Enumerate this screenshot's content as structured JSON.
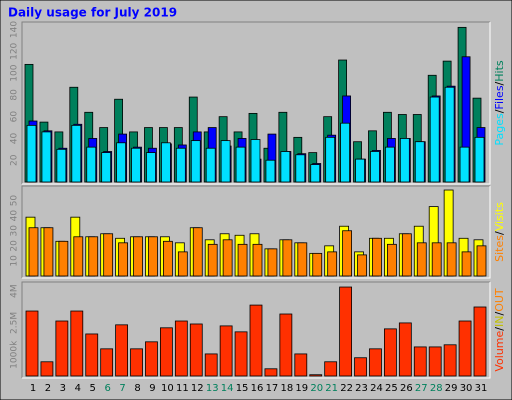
{
  "chart_data": {
    "type": "bar",
    "title": "Daily usage for July 2019",
    "categories": [
      "1",
      "2",
      "3",
      "4",
      "5",
      "6",
      "7",
      "8",
      "9",
      "10",
      "11",
      "12",
      "13",
      "14",
      "15",
      "16",
      "17",
      "18",
      "19",
      "20",
      "21",
      "22",
      "23",
      "24",
      "25",
      "26",
      "27",
      "28",
      "29",
      "30",
      "31"
    ],
    "weekend": [
      false,
      false,
      false,
      false,
      false,
      true,
      true,
      false,
      false,
      false,
      false,
      false,
      true,
      true,
      false,
      false,
      false,
      false,
      false,
      true,
      true,
      false,
      false,
      false,
      false,
      false,
      true,
      true,
      false,
      false,
      false
    ],
    "weekday_color": "#000000",
    "weekend_color": "#00805c",
    "legend_separator": "/",
    "panels": [
      {
        "ylim": [
          0,
          146
        ],
        "yticks": [
          20,
          40,
          60,
          80,
          100,
          120,
          140
        ],
        "series": [
          {
            "name": "Hits",
            "color": "#00805c",
            "values": [
              108,
              55,
              46,
              87,
              64,
              50,
              76,
              46,
              50,
              50,
              50,
              78,
              46,
              60,
              46,
              63,
              31,
              64,
              41,
              27,
              60,
              112,
              37,
              47,
              64,
              62,
              62,
              98,
              111,
              142,
              77
            ]
          },
          {
            "name": "Files",
            "color": "#0000ff",
            "values": [
              56,
              47,
              31,
              53,
              40,
              28,
              44,
              32,
              31,
              35,
              34,
              46,
              50,
              33,
              40,
              21,
              44,
              28,
              26,
              17,
              43,
              79,
              21,
              29,
              40,
              40,
              37,
              79,
              88,
              115,
              50
            ]
          },
          {
            "name": "Pages",
            "color": "#00e0ff",
            "values": [
              52,
              46,
              30,
              52,
              32,
              27,
              36,
              31,
              27,
              36,
              31,
              38,
              31,
              38,
              32,
              39,
              20,
              28,
              25,
              16,
              41,
              54,
              21,
              28,
              32,
              40,
              37,
              78,
              87,
              32,
              41
            ]
          }
        ]
      },
      {
        "ylim": [
          0,
          59
        ],
        "yticks": [
          10,
          20,
          30,
          40,
          50
        ],
        "series": [
          {
            "name": "Visits",
            "color": "#ffff00",
            "values": [
              39,
              32,
              23,
              39,
              26,
              28,
              25,
              26,
              26,
              26,
              22,
              32,
              24,
              28,
              27,
              28,
              18,
              24,
              22,
              15,
              20,
              33,
              16,
              25,
              25,
              28,
              33,
              46,
              57,
              25,
              24
            ]
          },
          {
            "name": "Sites",
            "color": "#ff8000",
            "values": [
              32,
              32,
              23,
              26,
              26,
              28,
              22,
              26,
              26,
              23,
              16,
              32,
              21,
              24,
              21,
              21,
              18,
              24,
              22,
              15,
              16,
              30,
              14,
              25,
              21,
              28,
              22,
              22,
              22,
              16,
              20
            ]
          }
        ]
      },
      {
        "ylim": [
          0,
          4380
        ],
        "yticks": [
          {
            "value": 1000,
            "label": "1000k"
          },
          {
            "value": 2500,
            "label": "2.5M"
          },
          {
            "value": 4000,
            "label": "4M"
          }
        ],
        "series": [
          {
            "name": "Volume",
            "color": "#ff3000",
            "values": [
              3060,
              670,
              2590,
              3060,
              1980,
              1280,
              2410,
              1280,
              1610,
              2270,
              2590,
              2450,
              1040,
              2360,
              2080,
              3340,
              340,
              2920,
              1040,
              60,
              670,
              4190,
              860,
              1280,
              2220,
              2500,
              1370,
              1370,
              1470,
              2590,
              3250
            ]
          }
        ],
        "legend_extra": [
          {
            "name": "IN",
            "color": "#c0c000"
          },
          {
            "name": "OUT",
            "color": "#ff8000"
          }
        ]
      }
    ]
  }
}
